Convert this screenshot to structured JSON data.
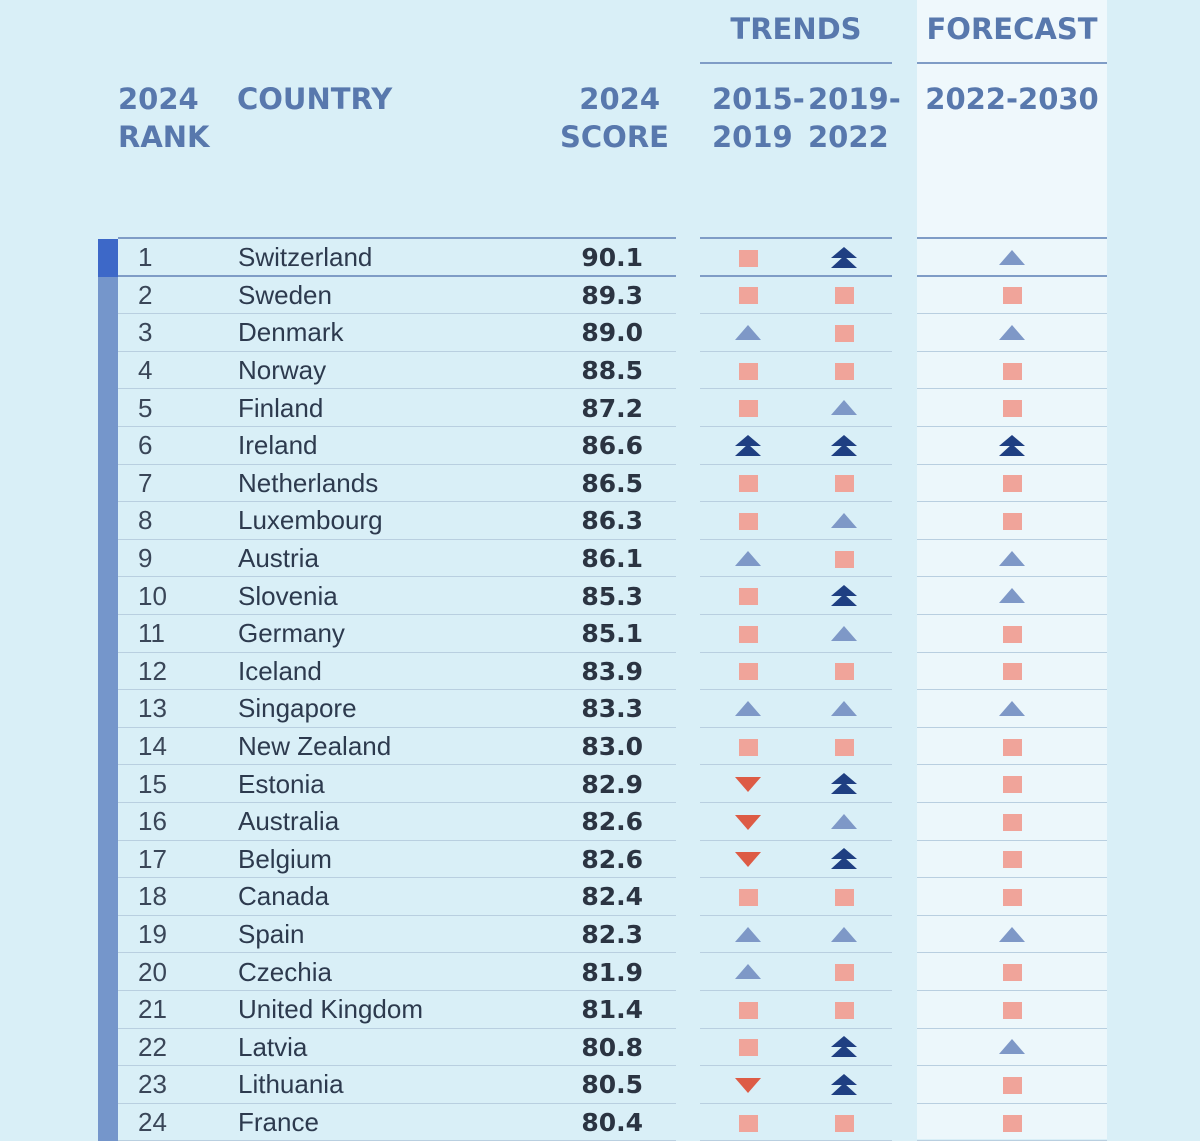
{
  "headers": {
    "trends": "TRENDS",
    "forecast": "FORECAST",
    "rank_line1": "2024",
    "rank_line2": "RANK",
    "country": "COUNTRY",
    "score_line1": "2024",
    "score_line2": "SCORE",
    "trend1_line1": "2015-",
    "trend1_line2": "2019",
    "trend2_line1": "2019-",
    "trend2_line2": "2022",
    "forecast_period": "2022-2030"
  },
  "colors": {
    "background": "#d9eff7",
    "header_text": "#5878ad",
    "square": "#f0a49a",
    "up_light": "#7e98c7",
    "up_double": "#1f3f82",
    "down": "#dd5b45"
  },
  "rows": [
    {
      "rank": "1",
      "country": "Switzerland",
      "score": "90.1",
      "t1": "square",
      "t2": "double-up",
      "f": "up"
    },
    {
      "rank": "2",
      "country": "Sweden",
      "score": "89.3",
      "t1": "square",
      "t2": "square",
      "f": "square"
    },
    {
      "rank": "3",
      "country": "Denmark",
      "score": "89.0",
      "t1": "up",
      "t2": "square",
      "f": "up"
    },
    {
      "rank": "4",
      "country": "Norway",
      "score": "88.5",
      "t1": "square",
      "t2": "square",
      "f": "square"
    },
    {
      "rank": "5",
      "country": "Finland",
      "score": "87.2",
      "t1": "square",
      "t2": "up",
      "f": "square"
    },
    {
      "rank": "6",
      "country": "Ireland",
      "score": "86.6",
      "t1": "double-up",
      "t2": "double-up",
      "f": "double-up"
    },
    {
      "rank": "7",
      "country": "Netherlands",
      "score": "86.5",
      "t1": "square",
      "t2": "square",
      "f": "square"
    },
    {
      "rank": "8",
      "country": "Luxembourg",
      "score": "86.3",
      "t1": "square",
      "t2": "up",
      "f": "square"
    },
    {
      "rank": "9",
      "country": "Austria",
      "score": "86.1",
      "t1": "up",
      "t2": "square",
      "f": "up"
    },
    {
      "rank": "10",
      "country": "Slovenia",
      "score": "85.3",
      "t1": "square",
      "t2": "double-up",
      "f": "up"
    },
    {
      "rank": "11",
      "country": "Germany",
      "score": "85.1",
      "t1": "square",
      "t2": "up",
      "f": "square"
    },
    {
      "rank": "12",
      "country": "Iceland",
      "score": "83.9",
      "t1": "square",
      "t2": "square",
      "f": "square"
    },
    {
      "rank": "13",
      "country": "Singapore",
      "score": "83.3",
      "t1": "up",
      "t2": "up",
      "f": "up"
    },
    {
      "rank": "14",
      "country": "New Zealand",
      "score": "83.0",
      "t1": "square",
      "t2": "square",
      "f": "square"
    },
    {
      "rank": "15",
      "country": "Estonia",
      "score": "82.9",
      "t1": "down",
      "t2": "double-up",
      "f": "square"
    },
    {
      "rank": "16",
      "country": "Australia",
      "score": "82.6",
      "t1": "down",
      "t2": "up",
      "f": "square"
    },
    {
      "rank": "17",
      "country": "Belgium",
      "score": "82.6",
      "t1": "down",
      "t2": "double-up",
      "f": "square"
    },
    {
      "rank": "18",
      "country": "Canada",
      "score": "82.4",
      "t1": "square",
      "t2": "square",
      "f": "square"
    },
    {
      "rank": "19",
      "country": "Spain",
      "score": "82.3",
      "t1": "up",
      "t2": "up",
      "f": "up"
    },
    {
      "rank": "20",
      "country": "Czechia",
      "score": "81.9",
      "t1": "up",
      "t2": "square",
      "f": "square"
    },
    {
      "rank": "21",
      "country": "United Kingdom",
      "score": "81.4",
      "t1": "square",
      "t2": "square",
      "f": "square"
    },
    {
      "rank": "22",
      "country": "Latvia",
      "score": "80.8",
      "t1": "square",
      "t2": "double-up",
      "f": "up"
    },
    {
      "rank": "23",
      "country": "Lithuania",
      "score": "80.5",
      "t1": "down",
      "t2": "double-up",
      "f": "square"
    },
    {
      "rank": "24",
      "country": "France",
      "score": "80.4",
      "t1": "square",
      "t2": "square",
      "f": "square"
    }
  ]
}
